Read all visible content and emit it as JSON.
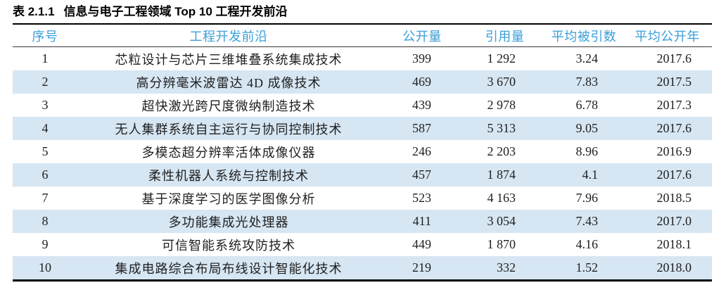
{
  "title": {
    "label": "表 2.1.1",
    "text": "信息与电子工程领域 Top 10 工程开发前沿"
  },
  "colors": {
    "header_text": "#3b9fd8",
    "row_alt_bg": "#d6e6f3",
    "body_text": "#1f1f1f",
    "rule": "#000000"
  },
  "table": {
    "columns": [
      {
        "key": "rank",
        "label": "序号"
      },
      {
        "key": "front",
        "label": "工程开发前沿"
      },
      {
        "key": "publications",
        "label": "公开量"
      },
      {
        "key": "citations",
        "label": "引用量"
      },
      {
        "key": "avg_citations",
        "label": "平均被引数"
      },
      {
        "key": "avg_year",
        "label": "平均公开年"
      }
    ],
    "rows": [
      [
        "1",
        "芯粒设计与芯片三维堆叠系统集成技术",
        "399",
        "1 292",
        "3.24",
        "2017.6"
      ],
      [
        "2",
        "高分辨毫米波雷达 4D 成像技术",
        "469",
        "3 670",
        "7.83",
        "2017.5"
      ],
      [
        "3",
        "超快激光跨尺度微纳制造技术",
        "439",
        "2 978",
        "6.78",
        "2017.3"
      ],
      [
        "4",
        "无人集群系统自主运行与协同控制技术",
        "587",
        "5 313",
        "9.05",
        "2017.6"
      ],
      [
        "5",
        "多模态超分辨率活体成像仪器",
        "246",
        "2 203",
        "8.96",
        "2016.9"
      ],
      [
        "6",
        "柔性机器人系统与控制技术",
        "457",
        "1 874",
        "4.1",
        "2017.6"
      ],
      [
        "7",
        "基于深度学习的医学图像分析",
        "523",
        "4 163",
        "7.96",
        "2018.5"
      ],
      [
        "8",
        "多功能集成光处理器",
        "411",
        "3 054",
        "7.43",
        "2017.0"
      ],
      [
        "9",
        "可信智能系统攻防技术",
        "449",
        "1 870",
        "4.16",
        "2018.1"
      ],
      [
        "10",
        "集成电路综合布局布线设计智能化技术",
        "219",
        "332",
        "1.52",
        "2018.0"
      ]
    ]
  }
}
